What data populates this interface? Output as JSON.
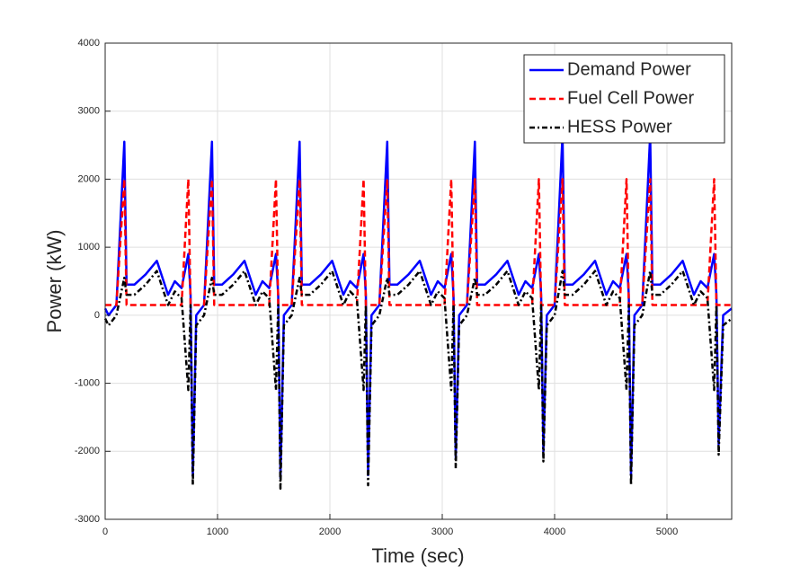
{
  "chart_data": {
    "type": "line",
    "xlabel": "Time (sec)",
    "ylabel": "Power (kW)",
    "x": [
      0,
      30,
      100,
      170,
      190,
      260,
      360,
      460,
      560,
      620,
      680,
      740,
      760,
      780,
      810,
      880,
      950,
      970,
      1040,
      1140,
      1240,
      1340,
      1400,
      1460,
      1520,
      1540,
      1560,
      1590,
      1660,
      1730,
      1750,
      1820,
      1920,
      2020,
      2120,
      2180,
      2240,
      2300,
      2320,
      2340,
      2370,
      2440,
      2510,
      2530,
      2600,
      2700,
      2800,
      2900,
      2960,
      3020,
      3080,
      3100,
      3120,
      3150,
      3220,
      3290,
      3310,
      3380,
      3480,
      3580,
      3680,
      3740,
      3800,
      3860,
      3880,
      3900,
      3930,
      4000,
      4070,
      4090,
      4160,
      4260,
      4360,
      4460,
      4520,
      4580,
      4640,
      4660,
      4680,
      4710,
      4780,
      4850,
      4870,
      4940,
      5040,
      5140,
      5240,
      5300,
      5360,
      5420,
      5440,
      5460,
      5500,
      5576
    ],
    "series": [
      {
        "name": "Demand Power",
        "color": "#0000ff",
        "dash": "solid",
        "values": [
          100,
          0,
          150,
          2550,
          450,
          450,
          600,
          800,
          300,
          500,
          400,
          900,
          300,
          -2350,
          0,
          150,
          2550,
          450,
          450,
          600,
          800,
          300,
          500,
          400,
          900,
          300,
          -2400,
          0,
          150,
          2550,
          450,
          450,
          600,
          800,
          300,
          500,
          400,
          900,
          300,
          -2350,
          0,
          150,
          2550,
          450,
          450,
          600,
          800,
          300,
          500,
          400,
          900,
          300,
          -2100,
          0,
          150,
          2550,
          450,
          450,
          600,
          800,
          300,
          500,
          400,
          900,
          300,
          -2000,
          0,
          150,
          2650,
          450,
          450,
          600,
          800,
          300,
          500,
          400,
          900,
          300,
          -2350,
          0,
          150,
          2650,
          450,
          450,
          600,
          800,
          300,
          500,
          400,
          900,
          300,
          -1900,
          0,
          100
        ]
      },
      {
        "name": "Fuel Cell Power",
        "color": "#ff0000",
        "dash": "dashed",
        "values": [
          150,
          150,
          150,
          2000,
          150,
          150,
          150,
          150,
          150,
          150,
          150,
          2000,
          150,
          150,
          150,
          150,
          2000,
          150,
          150,
          150,
          150,
          150,
          150,
          150,
          2000,
          150,
          150,
          150,
          150,
          2000,
          150,
          150,
          150,
          150,
          150,
          150,
          150,
          2000,
          150,
          150,
          150,
          150,
          2000,
          150,
          150,
          150,
          150,
          150,
          150,
          150,
          2000,
          150,
          150,
          150,
          150,
          2000,
          150,
          150,
          150,
          150,
          150,
          150,
          150,
          2000,
          150,
          150,
          150,
          150,
          2000,
          150,
          150,
          150,
          150,
          150,
          150,
          150,
          2000,
          150,
          150,
          150,
          150,
          2000,
          150,
          150,
          150,
          150,
          150,
          150,
          150,
          2000,
          150,
          150,
          150,
          150
        ]
      },
      {
        "name": "HESS Power",
        "color": "#000000",
        "dash": "dashdot",
        "values": [
          -50,
          -150,
          0,
          550,
          300,
          300,
          450,
          650,
          150,
          350,
          250,
          -1100,
          150,
          -2500,
          -150,
          0,
          550,
          300,
          300,
          450,
          650,
          150,
          350,
          250,
          -1100,
          150,
          -2550,
          -150,
          0,
          550,
          300,
          300,
          450,
          650,
          150,
          350,
          250,
          -1100,
          150,
          -2500,
          -150,
          0,
          550,
          300,
          300,
          450,
          650,
          150,
          350,
          250,
          -1100,
          150,
          -2250,
          -150,
          0,
          550,
          300,
          300,
          450,
          650,
          150,
          350,
          250,
          -1100,
          150,
          -2150,
          -150,
          0,
          650,
          300,
          300,
          450,
          650,
          150,
          350,
          250,
          -1100,
          150,
          -2500,
          -150,
          0,
          650,
          300,
          300,
          450,
          650,
          150,
          350,
          250,
          -1100,
          150,
          -2050,
          -150,
          -50
        ]
      }
    ],
    "xlim": [
      0,
      5576
    ],
    "xticks": [
      0,
      1000,
      2000,
      3000,
      4000,
      5000
    ],
    "ylim": [
      -3000,
      4000
    ],
    "yticks": [
      -3000,
      -2000,
      -1000,
      0,
      1000,
      2000,
      3000,
      4000
    ],
    "grid": true,
    "legend": "northeast"
  }
}
